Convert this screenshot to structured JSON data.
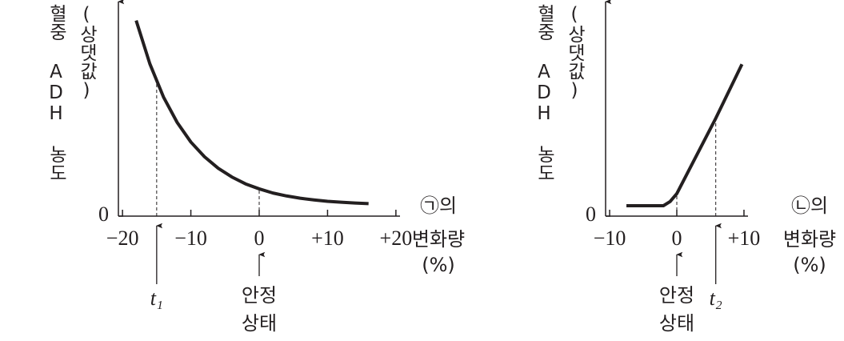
{
  "chart_data": [
    {
      "type": "line",
      "y_label": [
        "혈중 ADH 농도",
        "(상댓값)"
      ],
      "x_label": [
        "㉠의",
        "변화량",
        "(%)"
      ],
      "x": [
        -18,
        -16,
        -14,
        -12,
        -10,
        -8,
        -6,
        -4,
        -2,
        0,
        2,
        4,
        6,
        8,
        10,
        12,
        14,
        16
      ],
      "values": [
        94,
        73.2,
        57.2,
        45,
        35.6,
        28.5,
        23,
        18.8,
        15.5,
        13.1,
        11.1,
        9.7,
        8.6,
        7.8,
        7.1,
        6.7,
        6.3,
        6
      ],
      "color": "#231f20",
      "xlim": [
        -20.6,
        20.6
      ],
      "xticks": [
        {
          "value": -20,
          "label": "−20"
        },
        {
          "value": -10,
          "label": "−10"
        },
        0,
        {
          "value": 10,
          "label": "+10"
        },
        {
          "value": 20,
          "label": "+20"
        }
      ],
      "ylim": [
        0,
        100
      ],
      "yticks": [
        0
      ],
      "annotations": [
        {
          "label": [
            "t₁"
          ],
          "x": -15
        },
        {
          "label": [
            "안정",
            "상태"
          ],
          "x": 0
        }
      ]
    },
    {
      "type": "line",
      "y_label": [
        "혈중 ADH 농도",
        "(상댓값)"
      ],
      "x_label": [
        "㉡의",
        "변화량",
        "(%)"
      ],
      "x": [
        -7.5,
        -2,
        -1,
        0,
        5.8,
        9.7
      ],
      "values": [
        5,
        5,
        7,
        10.8,
        47,
        73
      ],
      "color": "#231f20",
      "xlim": [
        -10.6,
        10.6
      ],
      "xticks": [
        {
          "value": -10,
          "label": "−10"
        },
        0,
        {
          "value": 10,
          "label": "+10"
        }
      ],
      "ylim": [
        0,
        100
      ],
      "yticks": [
        0
      ],
      "annotations": [
        {
          "label": [
            "안정",
            "상태"
          ],
          "x": 0
        },
        {
          "label": [
            "t₂"
          ],
          "x": 5.8
        }
      ]
    }
  ]
}
